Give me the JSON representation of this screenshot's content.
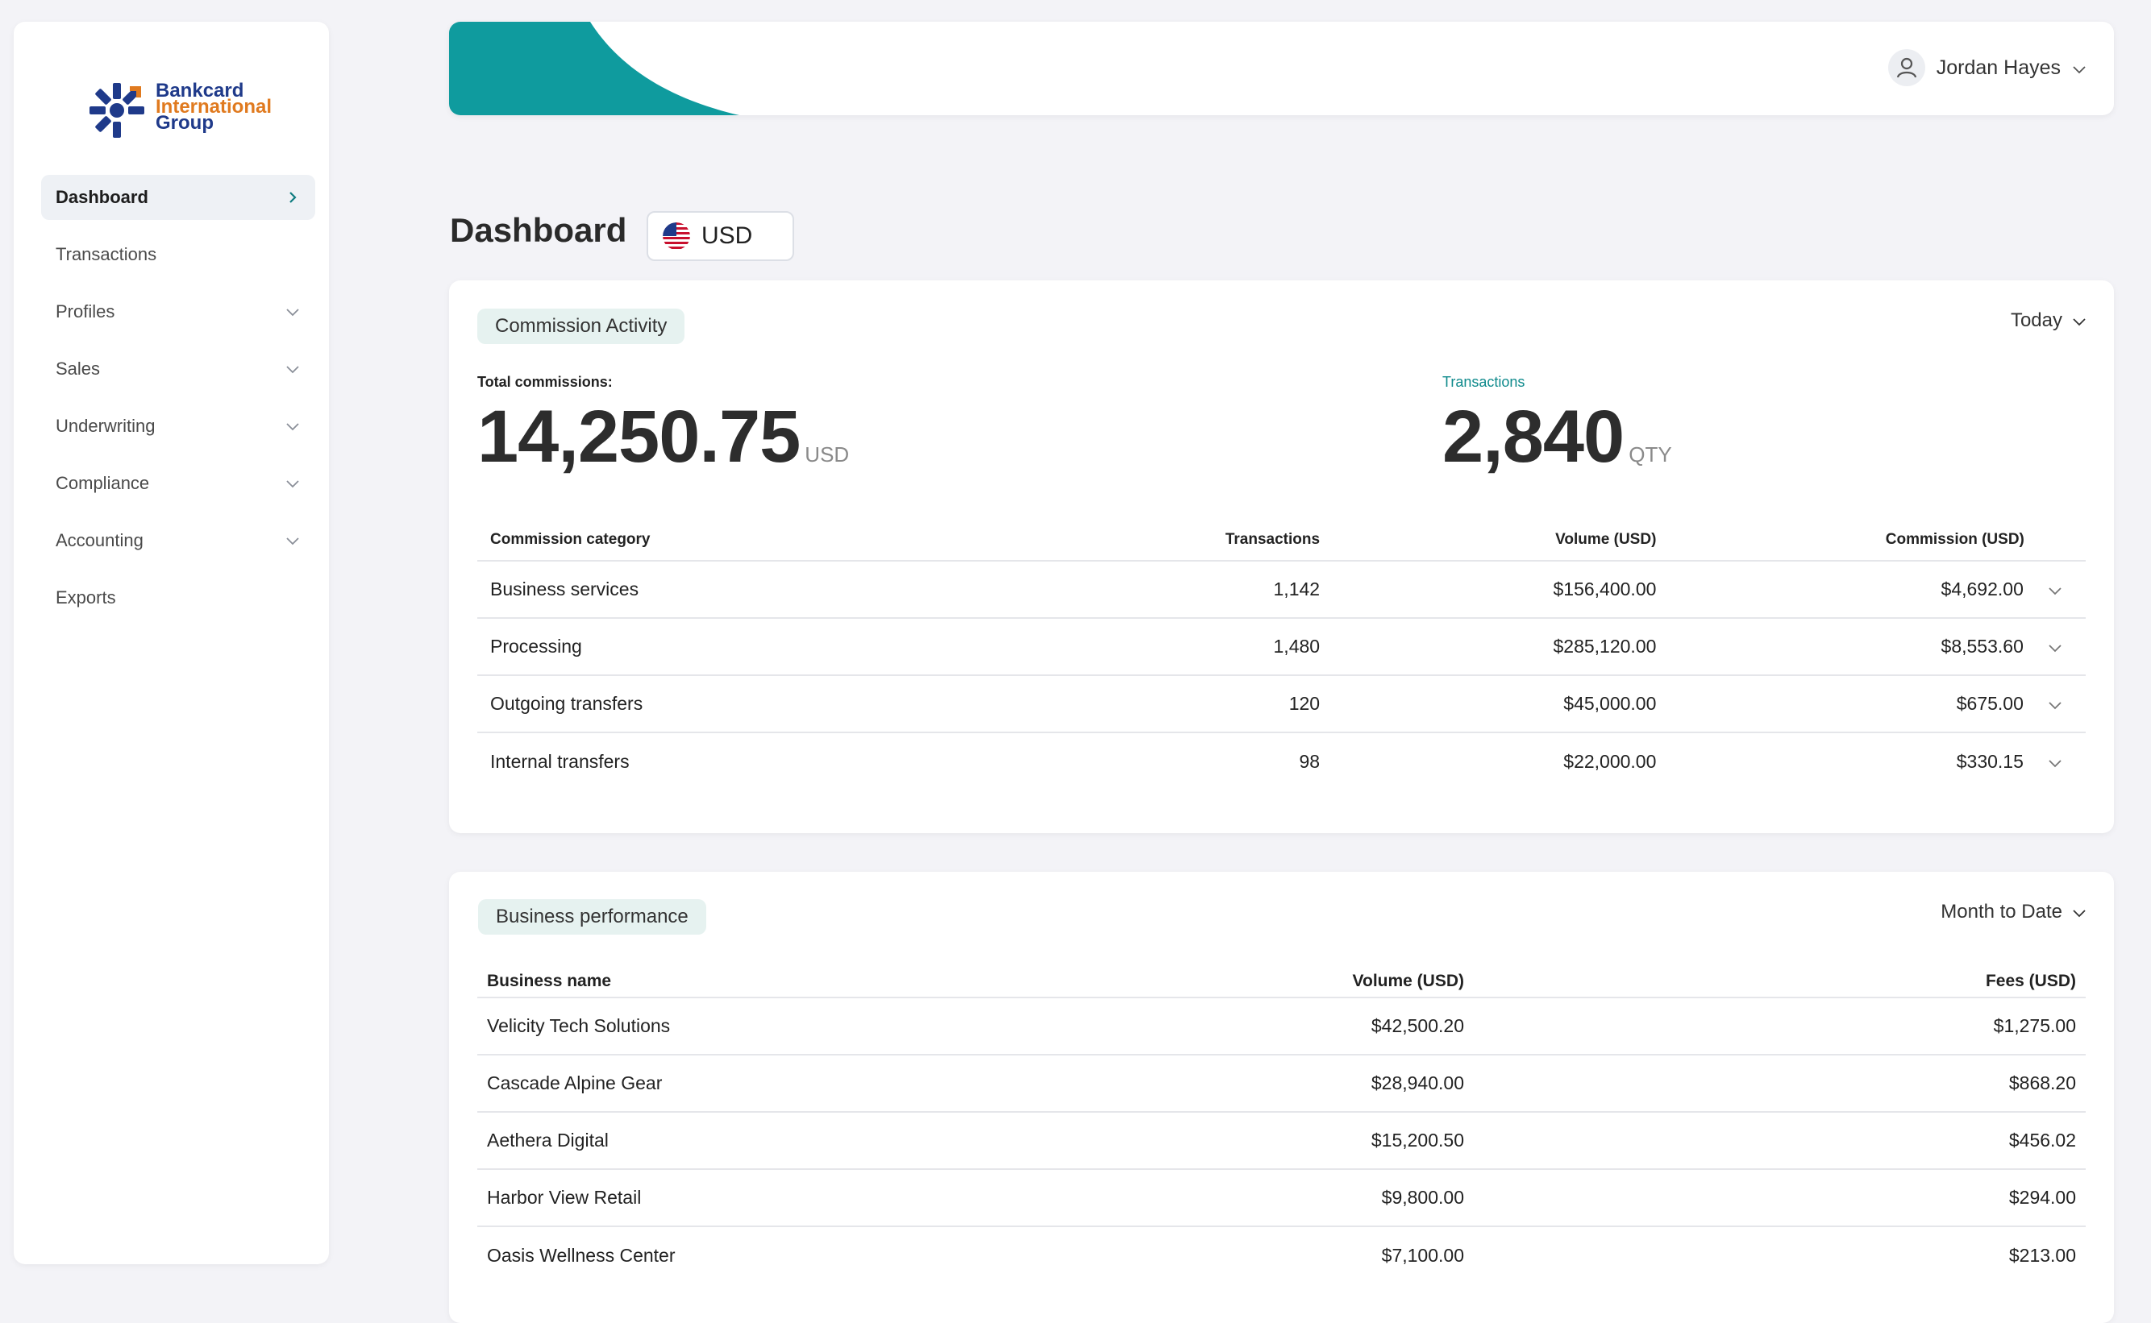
{
  "brand": {
    "line1": "Bankcard",
    "line2": "International",
    "line3": "Group",
    "colors": {
      "navy": "#1f3a8a",
      "orange": "#e07a1f",
      "teal": "#0f9b9e"
    }
  },
  "sidebar": {
    "items": [
      {
        "label": "Dashboard",
        "icon": "chevron-right-icon",
        "active": true
      },
      {
        "label": "Transactions",
        "icon": ""
      },
      {
        "label": "Profiles",
        "icon": "chevron-down-icon"
      },
      {
        "label": "Sales",
        "icon": "chevron-down-icon"
      },
      {
        "label": "Underwriting",
        "icon": "chevron-down-icon"
      },
      {
        "label": "Compliance",
        "icon": "chevron-down-icon"
      },
      {
        "label": "Accounting",
        "icon": "chevron-down-icon"
      },
      {
        "label": "Exports",
        "icon": ""
      }
    ]
  },
  "header": {
    "user_name": "Jordan Hayes"
  },
  "page": {
    "title": "Dashboard",
    "currency": "USD"
  },
  "commission": {
    "tag": "Commission Activity",
    "period": "Today",
    "total_label": "Total commissions:",
    "total_value": "14,250.75",
    "total_unit": "USD",
    "tx_label": "Transactions",
    "tx_value": "2,840",
    "tx_unit": "QTY",
    "columns": [
      "Commission category",
      "Transactions",
      "Volume (USD)",
      "Commission (USD)"
    ],
    "rows": [
      {
        "category": "Business services",
        "transactions": "1,142",
        "volume": "$156,400.00",
        "commission": "$4,692.00"
      },
      {
        "category": "Processing",
        "transactions": "1,480",
        "volume": "$285,120.00",
        "commission": "$8,553.60"
      },
      {
        "category": "Outgoing transfers",
        "transactions": "120",
        "volume": "$45,000.00",
        "commission": "$675.00"
      },
      {
        "category": "Internal transfers",
        "transactions": "98",
        "volume": "$22,000.00",
        "commission": "$330.15"
      }
    ]
  },
  "performance": {
    "tag": "Business performance",
    "period": "Month to Date",
    "columns": [
      "Business name",
      "Volume (USD)",
      "Fees (USD)"
    ],
    "rows": [
      {
        "name": "Velicity Tech Solutions",
        "volume": "$42,500.20",
        "fees": "$1,275.00"
      },
      {
        "name": "Cascade Alpine Gear",
        "volume": "$28,940.00",
        "fees": "$868.20"
      },
      {
        "name": "Aethera Digital",
        "volume": "$15,200.50",
        "fees": "$456.02"
      },
      {
        "name": "Harbor View Retail",
        "volume": "$9,800.00",
        "fees": "$294.00"
      },
      {
        "name": "Oasis Wellness Center",
        "volume": "$7,100.00",
        "fees": "$213.00"
      }
    ]
  }
}
